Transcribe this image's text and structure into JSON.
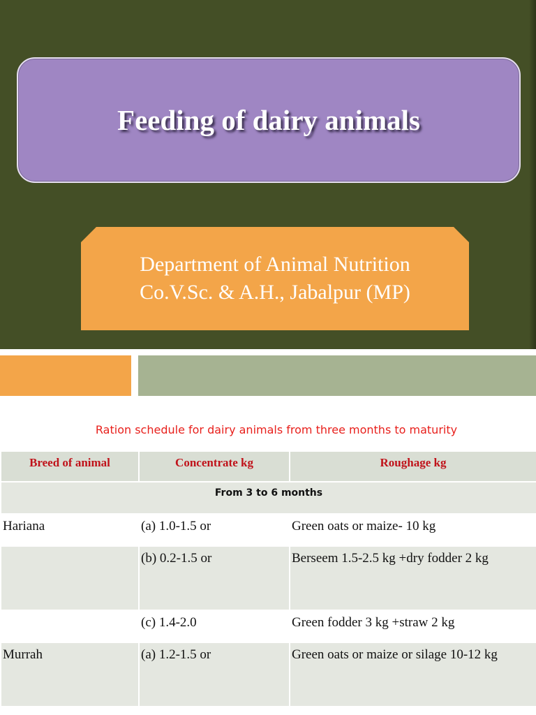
{
  "slide": {
    "title": "Feeding of dairy animals",
    "department_line1": "Department of Animal Nutrition",
    "department_line2": "Co.V.Sc. & A.H., Jabalpur  (MP)"
  },
  "table": {
    "heading": "Ration schedule for dairy animals from three months to maturity",
    "columns": [
      "Breed of animal",
      "Concentrate   kg",
      "Roughage     kg"
    ],
    "band": "From 3 to 6 months",
    "rows": [
      {
        "breed": "Hariana",
        "concentrate": "(a) 1.0-1.5 or",
        "roughage": "Green oats or maize- 10 kg"
      },
      {
        "breed": "",
        "concentrate": "(b) 0.2-1.5 or",
        "roughage": "Berseem 1.5-2.5 kg +dry fodder 2 kg"
      },
      {
        "breed": "",
        "concentrate": "(c) 1.4-2.0",
        "roughage": "Green fodder 3 kg +straw 2 kg"
      },
      {
        "breed": "Murrah",
        "concentrate": "(a) 1.2-1.5 or",
        "roughage": "Green oats or maize or silage 10-12 kg"
      }
    ]
  },
  "colors": {
    "slide_bg": "#444f26",
    "title_box": "#9f86c3",
    "dept_box": "#f3a549",
    "bar_green": "#a6b392",
    "heading_red": "#e8201c",
    "header_red": "#c0121a"
  }
}
